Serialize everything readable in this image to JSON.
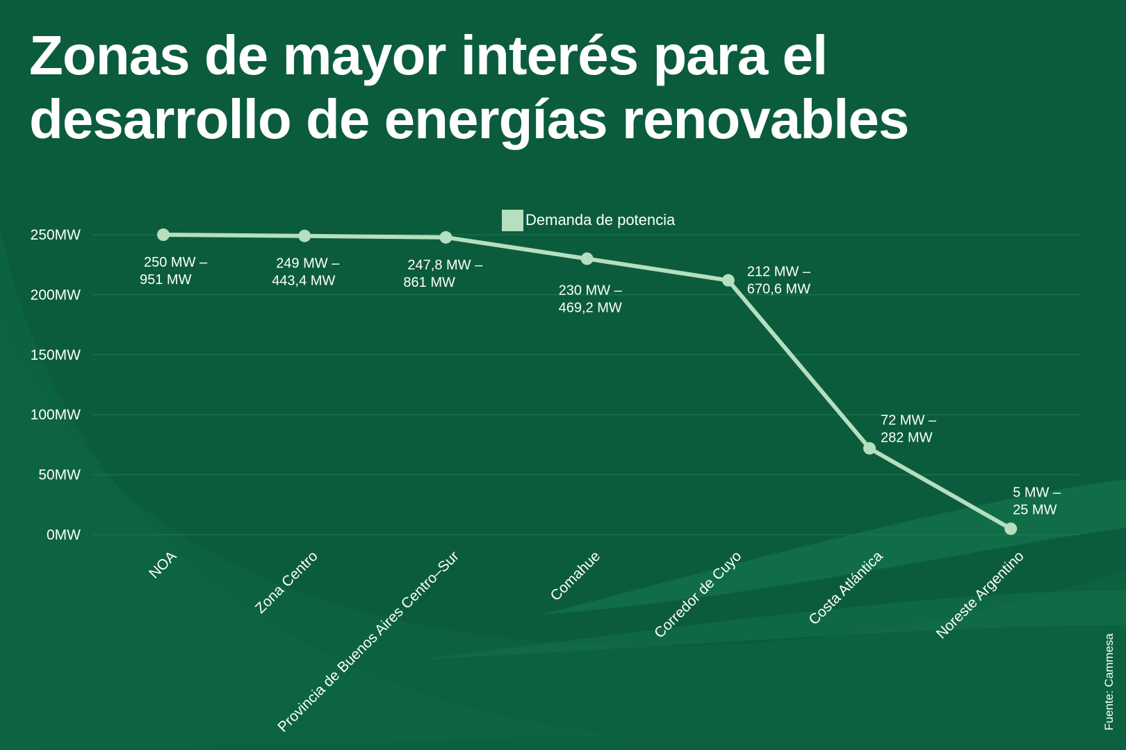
{
  "title": "Zonas de mayor interés para el desarrollo de energías renovables",
  "source": "Fuente: Cammesa",
  "colors": {
    "background": "#0b5c3d",
    "line": "#b5dfbf",
    "gridline": "#1f7a55",
    "text": "#ffffff"
  },
  "chart_data": {
    "type": "line",
    "title": "Zonas de mayor interés para el desarrollo de energías renovables",
    "categories": [
      "NOA",
      "Zona Centro",
      "Provincia de Buenos Aires Centro–Sur",
      "Comahue",
      "Corredor de Cuyo",
      "Costa Atlántica",
      "Noreste Argentino"
    ],
    "series": [
      {
        "name": "Demanda de potencia",
        "values": [
          250,
          249,
          247.8,
          230,
          212,
          72,
          5
        ],
        "labels": [
          [
            "250 MW –",
            "951 MW"
          ],
          [
            "249 MW –",
            "443,4 MW"
          ],
          [
            "247,8 MW –",
            "861 MW"
          ],
          [
            "230 MW –",
            "469,2 MW"
          ],
          [
            "212 MW –",
            "670,6 MW"
          ],
          [
            "72 MW –",
            "282 MW"
          ],
          [
            "5 MW –",
            "25 MW"
          ]
        ]
      }
    ],
    "ylim": [
      0,
      250
    ],
    "yticks": [
      0,
      50,
      100,
      150,
      200,
      250
    ],
    "ytick_labels": [
      "0MW",
      "50MW",
      "100MW",
      "150MW",
      "200MW",
      "250MW"
    ],
    "xlabel": "",
    "ylabel": "",
    "grid": true,
    "legend": "top-center"
  }
}
